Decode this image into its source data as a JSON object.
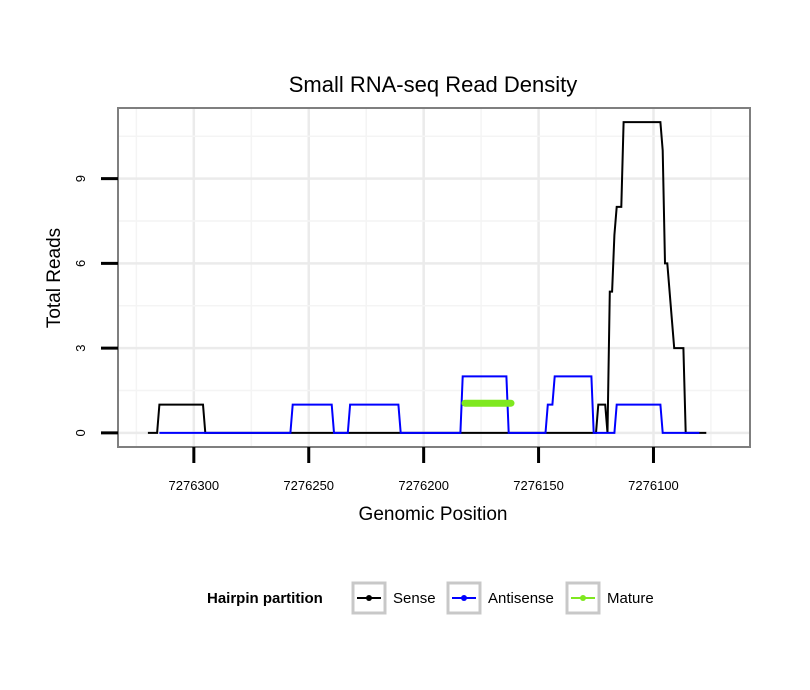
{
  "chart_data": {
    "type": "line",
    "title": "Small RNA-seq Read Density",
    "xlabel": "Genomic Position",
    "ylabel": "Total Reads",
    "xlim": [
      7276333,
      7276058
    ],
    "ylim": [
      -0.5,
      11.5
    ],
    "x_reversed": true,
    "x_ticks": [
      7276300,
      7276250,
      7276200,
      7276150,
      7276100
    ],
    "x_tick_labels": [
      "7276300",
      "7276250",
      "7276200",
      "7276150",
      "7276100"
    ],
    "y_ticks": [
      0,
      3,
      6,
      9
    ],
    "y_tick_labels": [
      "0",
      "3",
      "6",
      "9"
    ],
    "grid": true,
    "legend": {
      "title": "Hairpin partition",
      "position": "bottom",
      "entries": [
        "Sense",
        "Antisense",
        "Mature"
      ]
    },
    "series": [
      {
        "name": "Sense",
        "color": "#000000",
        "x": [
          7276320,
          7276316,
          7276315,
          7276296,
          7276295,
          7276182,
          7276181,
          7276125,
          7276124,
          7276121,
          7276120,
          7276119,
          7276118,
          7276117,
          7276116,
          7276114,
          7276113,
          7276106,
          7276105,
          7276097,
          7276096,
          7276095,
          7276094,
          7276092,
          7276091,
          7276087,
          7276086,
          7276082,
          7276081,
          7276077
        ],
        "values": [
          0,
          0,
          1,
          1,
          0,
          0,
          0,
          0,
          1,
          1,
          0,
          5,
          5,
          7,
          8,
          8,
          11,
          11,
          11,
          11,
          10,
          6,
          6,
          4,
          3,
          3,
          0,
          0,
          0,
          0
        ]
      },
      {
        "name": "Antisense",
        "color": "#0000ff",
        "x": [
          7276315,
          7276258,
          7276257,
          7276240,
          7276239,
          7276233,
          7276232,
          7276211,
          7276210,
          7276184,
          7276183,
          7276164,
          7276163,
          7276147,
          7276146,
          7276144,
          7276143,
          7276127,
          7276126,
          7276122,
          7276121,
          7276117,
          7276116,
          7276097,
          7276096,
          7276093,
          7276092,
          7276080
        ],
        "values": [
          0,
          0,
          1,
          1,
          0,
          0,
          1,
          1,
          0,
          0,
          2,
          2,
          0,
          0,
          1,
          1,
          2,
          2,
          0,
          0,
          0,
          0,
          1,
          1,
          0,
          0,
          0,
          0
        ]
      },
      {
        "name": "Mature",
        "color": "#7fe81f",
        "x": [
          7276182,
          7276162
        ],
        "values": [
          1.05,
          1.05
        ]
      }
    ]
  }
}
